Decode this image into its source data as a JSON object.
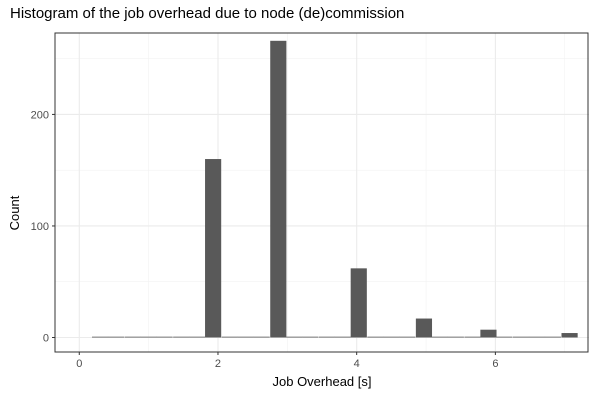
{
  "chart_data": {
    "type": "bar",
    "title": "Histogram of the job overhead due to node (de)commission",
    "xlabel": "Job Overhead [s]",
    "ylabel": "Count",
    "xlim": [
      -0.35,
      7.35
    ],
    "ylim": [
      -13,
      273
    ],
    "x_ticks": [
      0,
      2,
      4,
      6
    ],
    "x_tick_labels": [
      "0",
      "2",
      "4",
      "6"
    ],
    "y_ticks": [
      0,
      100,
      200
    ],
    "y_tick_labels": [
      "0",
      "100",
      "200"
    ],
    "bin_width": 0.233,
    "bins": [
      {
        "x": 0.3,
        "count": 0
      },
      {
        "x": 0.53,
        "count": 0
      },
      {
        "x": 0.77,
        "count": 0
      },
      {
        "x": 1.0,
        "count": 0
      },
      {
        "x": 1.23,
        "count": 0
      },
      {
        "x": 1.47,
        "count": 0
      },
      {
        "x": 1.7,
        "count": 0
      },
      {
        "x": 1.93,
        "count": 160
      },
      {
        "x": 2.17,
        "count": 0
      },
      {
        "x": 2.4,
        "count": 0
      },
      {
        "x": 2.63,
        "count": 0
      },
      {
        "x": 2.87,
        "count": 266
      },
      {
        "x": 3.1,
        "count": 0
      },
      {
        "x": 3.33,
        "count": 0
      },
      {
        "x": 3.57,
        "count": 0
      },
      {
        "x": 3.8,
        "count": 0
      },
      {
        "x": 4.03,
        "count": 62
      },
      {
        "x": 4.27,
        "count": 0
      },
      {
        "x": 4.5,
        "count": 0
      },
      {
        "x": 4.73,
        "count": 0
      },
      {
        "x": 4.97,
        "count": 17
      },
      {
        "x": 5.2,
        "count": 0
      },
      {
        "x": 5.43,
        "count": 0
      },
      {
        "x": 5.67,
        "count": 0
      },
      {
        "x": 5.9,
        "count": 7
      },
      {
        "x": 6.13,
        "count": 0
      },
      {
        "x": 6.37,
        "count": 0
      },
      {
        "x": 6.6,
        "count": 0
      },
      {
        "x": 6.83,
        "count": 0
      },
      {
        "x": 7.07,
        "count": 4
      }
    ],
    "grid": true,
    "colors": {
      "bar": "#595959",
      "grid_major": "#ebebeb",
      "grid_minor": "#f2f2f2",
      "panel_border": "#333333"
    }
  }
}
